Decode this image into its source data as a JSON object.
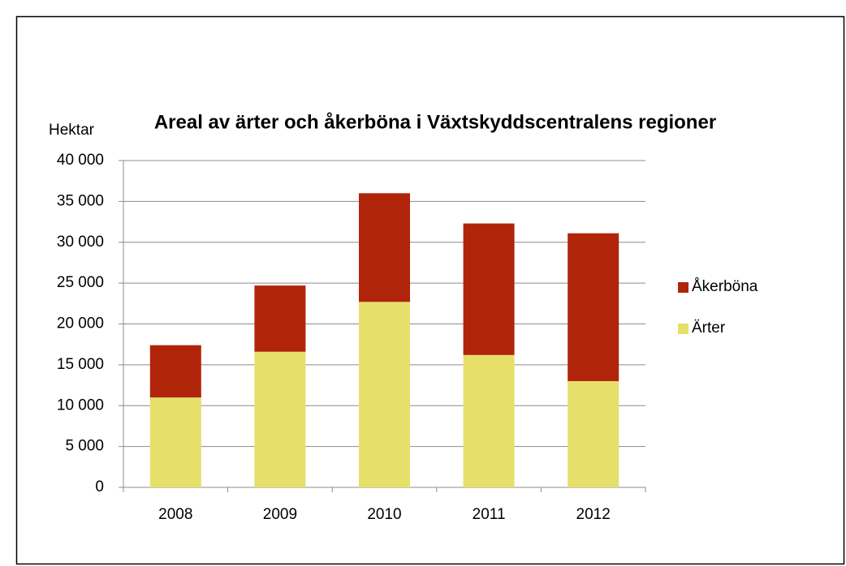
{
  "chart_data": {
    "type": "stacked_bar",
    "title": "Areal av ärter och åkerböna i Växtskyddscentralens regioner",
    "y_label": "Hektar",
    "categories": [
      "2008",
      "2009",
      "2010",
      "2011",
      "2012"
    ],
    "series": [
      {
        "name": "Ärter",
        "color": "#e6e06b",
        "values": [
          11000,
          16600,
          22700,
          16200,
          13000
        ]
      },
      {
        "name": "Åkerböna",
        "color": "#b0250a",
        "values": [
          6400,
          8100,
          13300,
          16100,
          18100
        ]
      }
    ],
    "ylim": [
      0,
      40000
    ],
    "yticks": [
      0,
      {
        "value": 5000,
        "label": "5 000"
      },
      {
        "value": 10000,
        "label": "10 000"
      },
      {
        "value": 15000,
        "label": "15 000"
      },
      {
        "value": 20000,
        "label": "20 000"
      },
      {
        "value": 25000,
        "label": "25 000"
      },
      {
        "value": 30000,
        "label": "30 000"
      },
      {
        "value": 35000,
        "label": "35 000"
      },
      {
        "value": 40000,
        "label": "40 000"
      }
    ],
    "grid": true,
    "legend": "right"
  }
}
